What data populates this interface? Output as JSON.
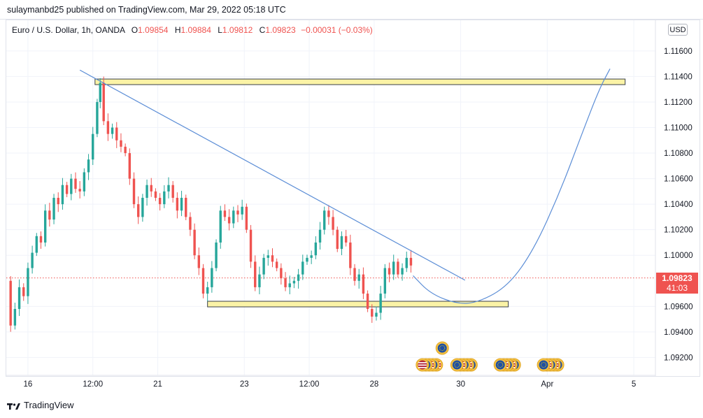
{
  "header": {
    "publish_text": "sulaymanbd25 published on TradingView.com, Mar 29, 2022 05:18 UTC"
  },
  "legend": {
    "symbol": "Euro / U.S. Dollar, 1h, OANDA",
    "open_label": "O",
    "open": "1.09854",
    "high_label": "H",
    "high": "1.09884",
    "low_label": "L",
    "low": "1.09812",
    "close_label": "C",
    "close": "1.09823",
    "change": "−0.00031 (−0.03%)"
  },
  "currency_button": "USD",
  "last_price": {
    "price": "1.09823",
    "countdown": "41:03"
  },
  "footer": {
    "brand": "TradingView"
  },
  "colors": {
    "up": "#26a69a",
    "down": "#ef5350",
    "trend": "#5b8dd6",
    "zone_fill": "#fbf3a6",
    "zone_stroke": "#3a3f4a",
    "price_line": "#ef5350"
  },
  "chart_data": {
    "type": "candlestick",
    "symbol": "EURUSD",
    "interval": "1h",
    "y_ticks": [
      "1.11600",
      "1.11400",
      "1.11200",
      "1.11000",
      "1.10800",
      "1.10600",
      "1.10400",
      "1.10200",
      "1.10000",
      "1.09600",
      "1.09400",
      "1.09200"
    ],
    "ylim": [
      1.0906,
      1.1184
    ],
    "x_ticks": [
      {
        "label": "16",
        "t": 0.5
      },
      {
        "label": "12:00",
        "t": 2.0
      },
      {
        "label": "21",
        "t": 3.5
      },
      {
        "label": "23",
        "t": 5.5
      },
      {
        "label": "12:00",
        "t": 7.0
      },
      {
        "label": "28",
        "t": 8.5
      },
      {
        "label": "30",
        "t": 10.5
      },
      {
        "label": "Apr",
        "t": 12.5
      },
      {
        "label": "5",
        "t": 14.5
      }
    ],
    "xlim": [
      0,
      15.0
    ],
    "price_series": [
      [
        0.0,
        1.098
      ],
      [
        0.1,
        1.0945
      ],
      [
        0.2,
        1.0958
      ],
      [
        0.3,
        1.0975
      ],
      [
        0.4,
        1.0968
      ],
      [
        0.5,
        1.099
      ],
      [
        0.6,
        1.1002
      ],
      [
        0.7,
        1.1015
      ],
      [
        0.8,
        1.101
      ],
      [
        0.9,
        1.1035
      ],
      [
        1.0,
        1.1028
      ],
      [
        1.1,
        1.1045
      ],
      [
        1.2,
        1.104
      ],
      [
        1.3,
        1.1055
      ],
      [
        1.4,
        1.1048
      ],
      [
        1.5,
        1.106
      ],
      [
        1.6,
        1.1052
      ],
      [
        1.7,
        1.105
      ],
      [
        1.8,
        1.1065
      ],
      [
        1.9,
        1.1075
      ],
      [
        2.0,
        1.1095
      ],
      [
        2.1,
        1.112
      ],
      [
        2.17,
        1.1135
      ],
      [
        2.25,
        1.1105
      ],
      [
        2.35,
        1.1095
      ],
      [
        2.45,
        1.11
      ],
      [
        2.55,
        1.109
      ],
      [
        2.65,
        1.1085
      ],
      [
        2.75,
        1.108
      ],
      [
        2.85,
        1.106
      ],
      [
        2.95,
        1.104
      ],
      [
        3.05,
        1.103
      ],
      [
        3.15,
        1.1045
      ],
      [
        3.25,
        1.1055
      ],
      [
        3.35,
        1.105
      ],
      [
        3.45,
        1.1045
      ],
      [
        3.55,
        1.104
      ],
      [
        3.65,
        1.105
      ],
      [
        3.75,
        1.1055
      ],
      [
        3.85,
        1.1045
      ],
      [
        3.95,
        1.1035
      ],
      [
        4.05,
        1.1045
      ],
      [
        4.15,
        1.103
      ],
      [
        4.25,
        1.102
      ],
      [
        4.35,
        1.1
      ],
      [
        4.45,
        1.099
      ],
      [
        4.55,
        1.097
      ],
      [
        4.65,
        1.0975
      ],
      [
        4.75,
        1.099
      ],
      [
        4.85,
        1.101
      ],
      [
        4.95,
        1.1035
      ],
      [
        5.05,
        1.103
      ],
      [
        5.15,
        1.1025
      ],
      [
        5.25,
        1.1035
      ],
      [
        5.35,
        1.1032
      ],
      [
        5.45,
        1.1038
      ],
      [
        5.55,
        1.102
      ],
      [
        5.65,
        1.0995
      ],
      [
        5.75,
        1.0975
      ],
      [
        5.85,
        1.0985
      ],
      [
        5.95,
        1.0998
      ],
      [
        6.05,
        1.1
      ],
      [
        6.15,
        1.0995
      ],
      [
        6.25,
        1.099
      ],
      [
        6.35,
        1.0982
      ],
      [
        6.45,
        1.0975
      ],
      [
        6.55,
        1.0978
      ],
      [
        6.65,
        1.098
      ],
      [
        6.75,
        1.0985
      ],
      [
        6.85,
        1.0995
      ],
      [
        6.95,
        1.0998
      ],
      [
        7.05,
        1.1
      ],
      [
        7.15,
        1.101
      ],
      [
        7.25,
        1.102
      ],
      [
        7.35,
        1.1035
      ],
      [
        7.45,
        1.103
      ],
      [
        7.55,
        1.102
      ],
      [
        7.65,
        1.1005
      ],
      [
        7.75,
        1.1015
      ],
      [
        7.85,
        1.101
      ],
      [
        7.95,
        1.099
      ],
      [
        8.05,
        1.098
      ],
      [
        8.15,
        1.0985
      ],
      [
        8.25,
        1.097
      ],
      [
        8.35,
        1.0958
      ],
      [
        8.45,
        1.0952
      ],
      [
        8.55,
        1.0955
      ],
      [
        8.65,
        1.097
      ],
      [
        8.75,
        1.099
      ],
      [
        8.85,
        1.0985
      ],
      [
        8.95,
        1.0995
      ],
      [
        9.05,
        1.0985
      ],
      [
        9.15,
        1.099
      ],
      [
        9.25,
        1.0998
      ],
      [
        9.35,
        1.0992
      ]
    ],
    "annotations": {
      "resistance_zone": {
        "x0": 2.05,
        "x1": 14.3,
        "y0": 1.1135,
        "y1": 1.1138
      },
      "support_zone": {
        "x0": 4.65,
        "x1": 11.6,
        "y0": 1.0961,
        "y1": 1.0964
      },
      "trendline": {
        "x0": 1.7,
        "y0": 1.1145,
        "x1": 10.6,
        "y1": 1.09805
      },
      "projection_curve": [
        [
          9.4,
          1.0984
        ],
        [
          9.8,
          1.097
        ],
        [
          10.4,
          1.0962
        ],
        [
          10.9,
          1.0963
        ],
        [
          11.6,
          1.0976
        ],
        [
          12.2,
          1.1005
        ],
        [
          12.8,
          1.105
        ],
        [
          13.3,
          1.1095
        ],
        [
          13.7,
          1.113
        ],
        [
          13.95,
          1.1146
        ]
      ],
      "last_price": 1.09823
    },
    "events_row_1": [
      {
        "t": 10.3,
        "kind": "eu-flag"
      }
    ],
    "events_row_2": [
      {
        "t": 10.1,
        "kind": "us-flag"
      },
      {
        "t": 10.9,
        "kind": "eu-flag"
      },
      {
        "t": 11.9,
        "kind": "eu-flag"
      },
      {
        "t": 12.9,
        "kind": "eu-flag"
      }
    ]
  }
}
